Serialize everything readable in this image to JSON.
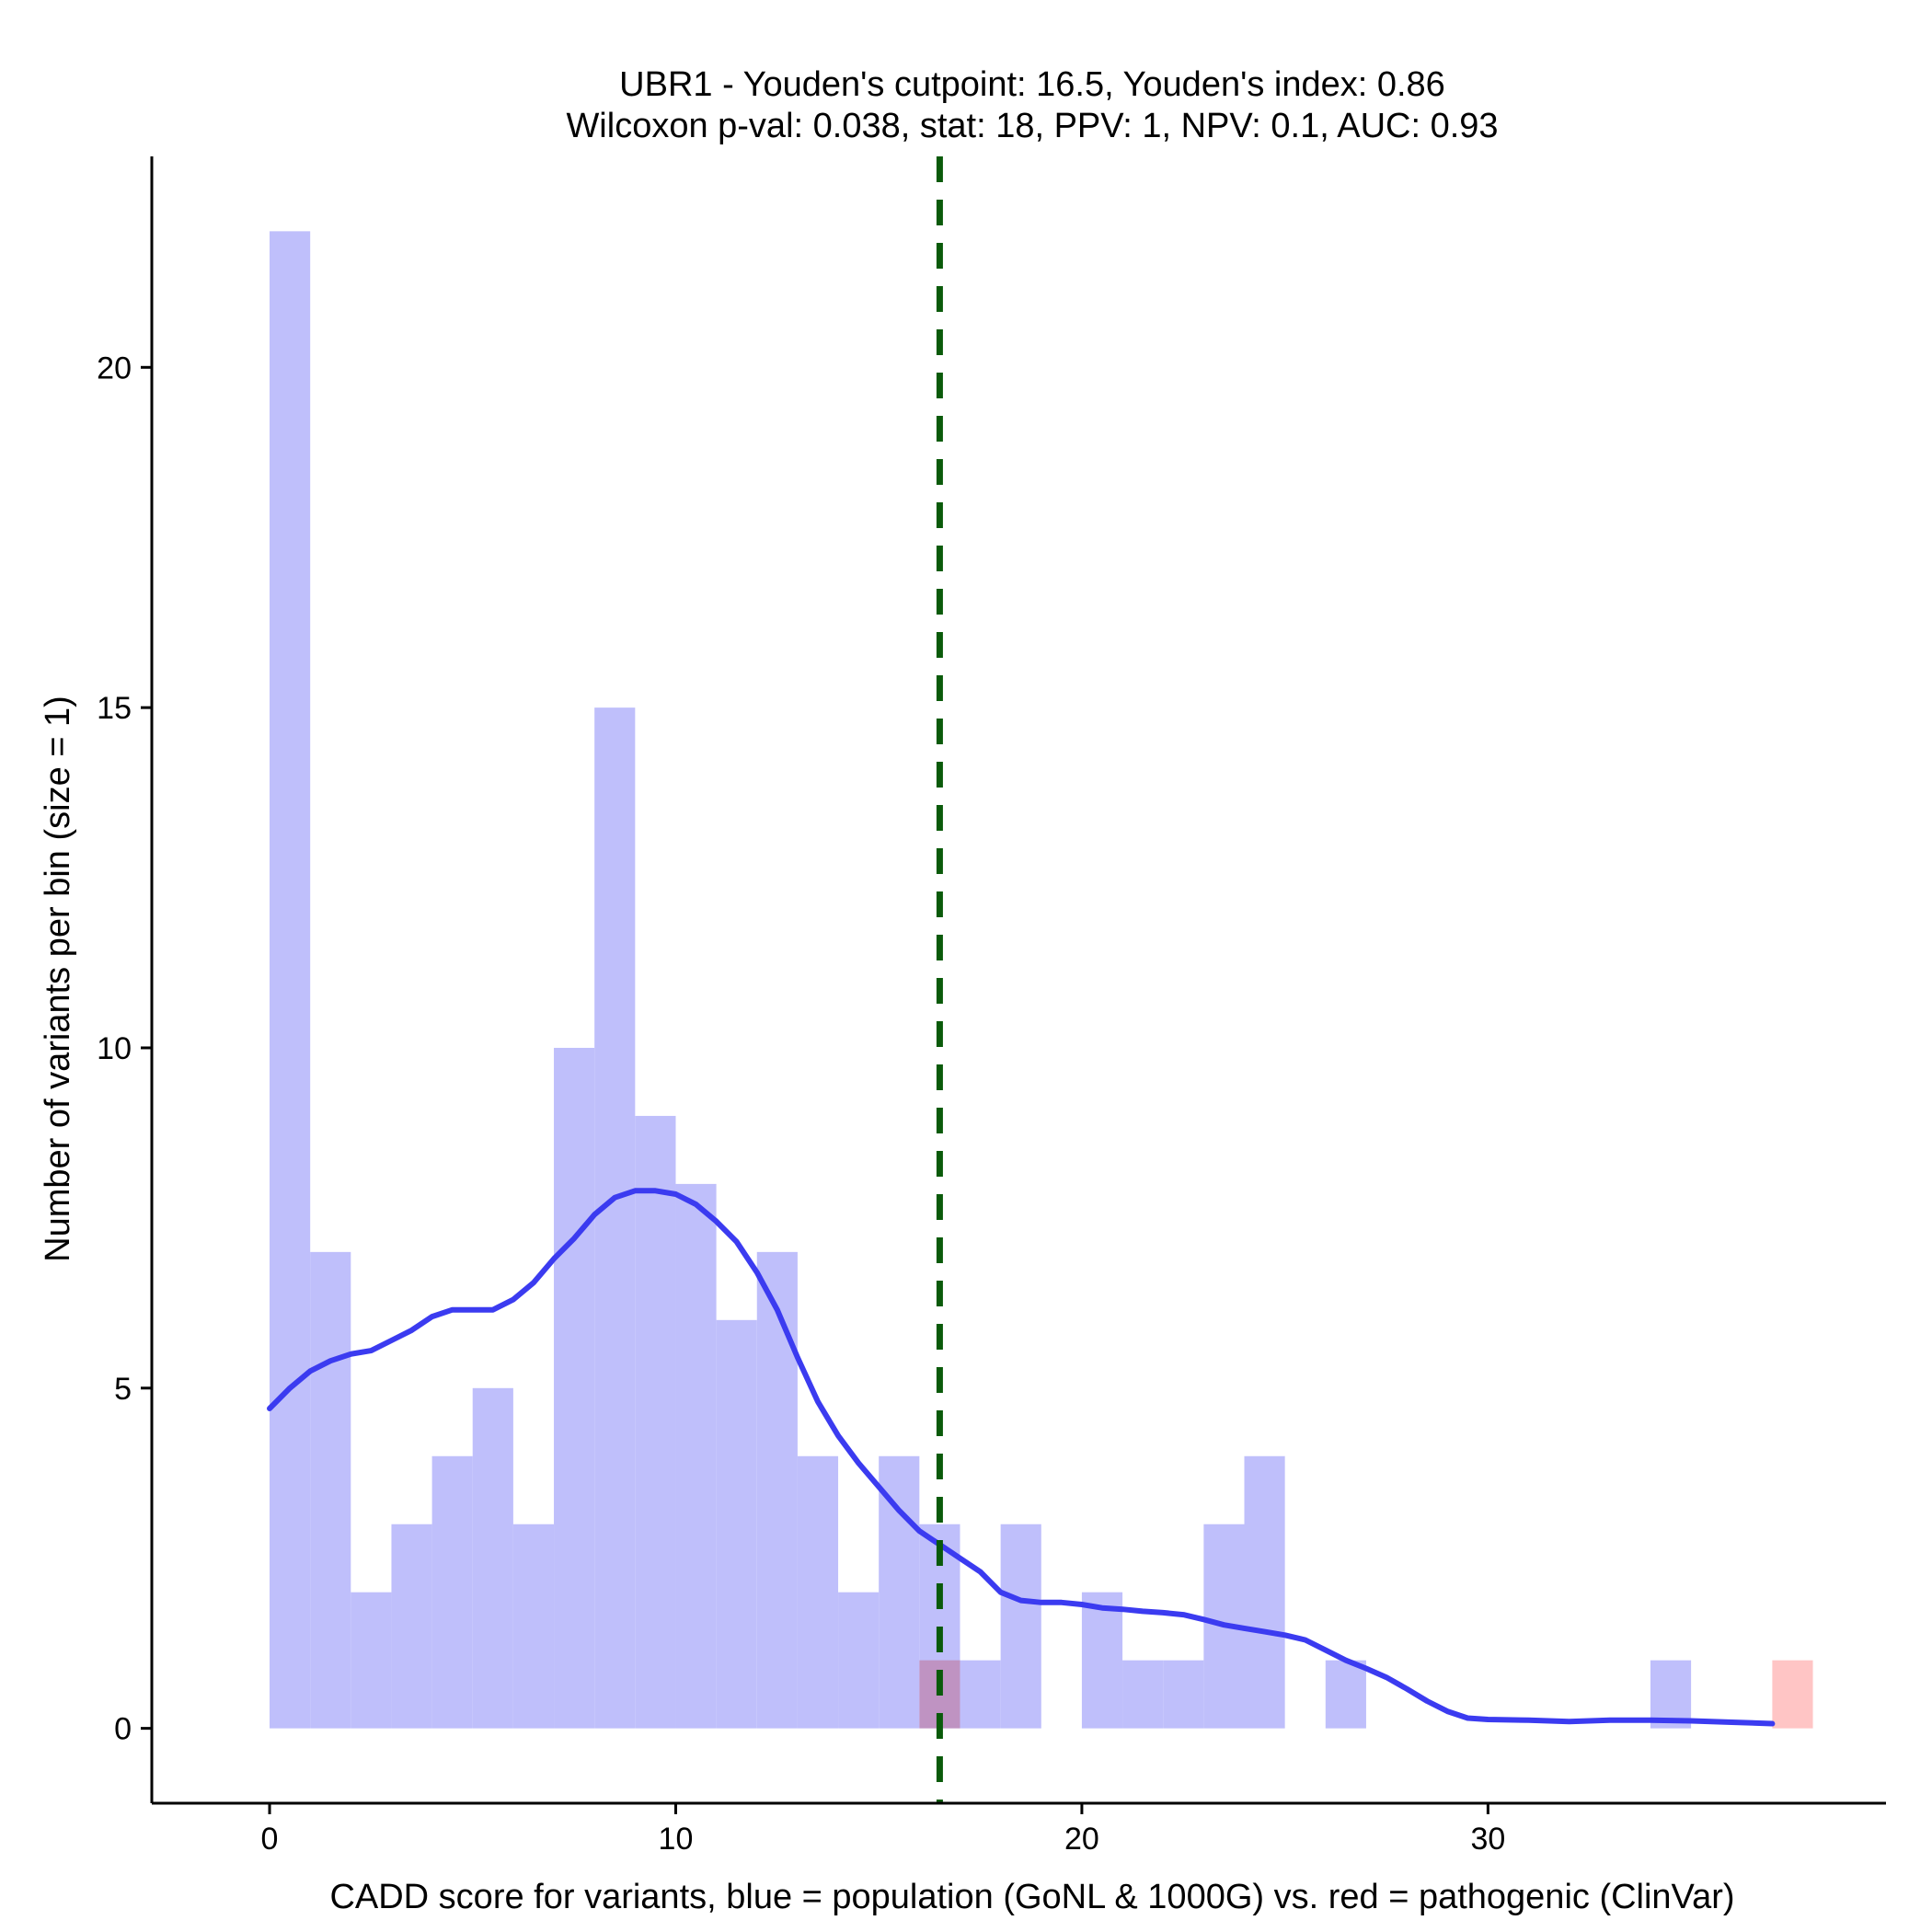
{
  "chart_data": {
    "type": "bar",
    "title_line1": "UBR1 - Youden's cutpoint: 16.5, Youden's index: 0.86",
    "title_line2": "Wilcoxon p-val: 0.038, stat: 18, PPV: 1, NPV: 0.1, AUC: 0.93",
    "xlabel": "CADD score for variants, blue = population (GoNL & 1000G) vs. red = pathogenic (ClinVar)",
    "ylabel": "Number of variants per bin (size = 1)",
    "xlim": [
      -2.9,
      39.8
    ],
    "ylim": [
      -1.1,
      23.1
    ],
    "x_ticks": [
      0,
      10,
      20,
      30
    ],
    "y_ticks": [
      0,
      5,
      10,
      15,
      20
    ],
    "bin_width": 1,
    "series": [
      {
        "name": "population (GoNL & 1000G)",
        "color": "#bfbffb",
        "bins": [
          {
            "x": 0,
            "count": 22
          },
          {
            "x": 1,
            "count": 7
          },
          {
            "x": 2,
            "count": 2
          },
          {
            "x": 3,
            "count": 3
          },
          {
            "x": 4,
            "count": 4
          },
          {
            "x": 5,
            "count": 5
          },
          {
            "x": 6,
            "count": 3
          },
          {
            "x": 7,
            "count": 10
          },
          {
            "x": 8,
            "count": 15
          },
          {
            "x": 9,
            "count": 9
          },
          {
            "x": 10,
            "count": 8
          },
          {
            "x": 11,
            "count": 6
          },
          {
            "x": 12,
            "count": 7
          },
          {
            "x": 13,
            "count": 4
          },
          {
            "x": 14,
            "count": 2
          },
          {
            "x": 15,
            "count": 4
          },
          {
            "x": 16,
            "count": 3
          },
          {
            "x": 17,
            "count": 1
          },
          {
            "x": 18,
            "count": 3
          },
          {
            "x": 20,
            "count": 2
          },
          {
            "x": 21,
            "count": 1
          },
          {
            "x": 22,
            "count": 1
          },
          {
            "x": 23,
            "count": 3
          },
          {
            "x": 24,
            "count": 4
          },
          {
            "x": 26,
            "count": 1
          },
          {
            "x": 34,
            "count": 1
          }
        ]
      },
      {
        "name": "pathogenic (ClinVar)",
        "color": "#ffbfbf",
        "bins": [
          {
            "x": 16,
            "count": 1
          },
          {
            "x": 37,
            "count": 1
          }
        ]
      }
    ],
    "density_curve": {
      "color": "#3b3bf0",
      "points": [
        [
          0,
          4.7
        ],
        [
          0.5,
          5.0
        ],
        [
          1,
          5.25
        ],
        [
          1.5,
          5.4
        ],
        [
          2,
          5.5
        ],
        [
          2.5,
          5.55
        ],
        [
          3,
          5.7
        ],
        [
          3.5,
          5.85
        ],
        [
          4,
          6.05
        ],
        [
          4.5,
          6.15
        ],
        [
          5,
          6.15
        ],
        [
          5.5,
          6.15
        ],
        [
          6,
          6.3
        ],
        [
          6.5,
          6.55
        ],
        [
          7,
          6.9
        ],
        [
          7.5,
          7.2
        ],
        [
          8,
          7.55
        ],
        [
          8.5,
          7.8
        ],
        [
          9,
          7.9
        ],
        [
          9.5,
          7.9
        ],
        [
          10,
          7.85
        ],
        [
          10.5,
          7.7
        ],
        [
          11,
          7.45
        ],
        [
          11.5,
          7.15
        ],
        [
          12,
          6.7
        ],
        [
          12.5,
          6.15
        ],
        [
          13,
          5.45
        ],
        [
          13.5,
          4.8
        ],
        [
          14,
          4.3
        ],
        [
          14.5,
          3.9
        ],
        [
          15,
          3.55
        ],
        [
          15.5,
          3.2
        ],
        [
          16,
          2.9
        ],
        [
          16.5,
          2.7
        ],
        [
          17,
          2.5
        ],
        [
          17.5,
          2.3
        ],
        [
          18,
          2.0
        ],
        [
          18.5,
          1.88
        ],
        [
          19,
          1.85
        ],
        [
          19.5,
          1.85
        ],
        [
          20,
          1.82
        ],
        [
          20.5,
          1.77
        ],
        [
          21,
          1.75
        ],
        [
          21.5,
          1.72
        ],
        [
          22,
          1.7
        ],
        [
          22.5,
          1.67
        ],
        [
          23,
          1.6
        ],
        [
          23.5,
          1.52
        ],
        [
          24,
          1.47
        ],
        [
          24.5,
          1.42
        ],
        [
          25,
          1.37
        ],
        [
          25.5,
          1.3
        ],
        [
          26,
          1.15
        ],
        [
          26.5,
          1.0
        ],
        [
          27,
          0.88
        ],
        [
          27.5,
          0.75
        ],
        [
          28,
          0.58
        ],
        [
          28.5,
          0.4
        ],
        [
          29,
          0.25
        ],
        [
          29.5,
          0.15
        ],
        [
          30,
          0.13
        ],
        [
          31,
          0.12
        ],
        [
          32,
          0.1
        ],
        [
          33,
          0.12
        ],
        [
          34,
          0.12
        ],
        [
          35,
          0.11
        ],
        [
          36,
          0.09
        ],
        [
          37,
          0.07
        ]
      ]
    },
    "cutpoint": {
      "x": 16.5,
      "color": "#0a5a0a",
      "style": "dashed"
    },
    "grid": false,
    "legend": "none"
  }
}
